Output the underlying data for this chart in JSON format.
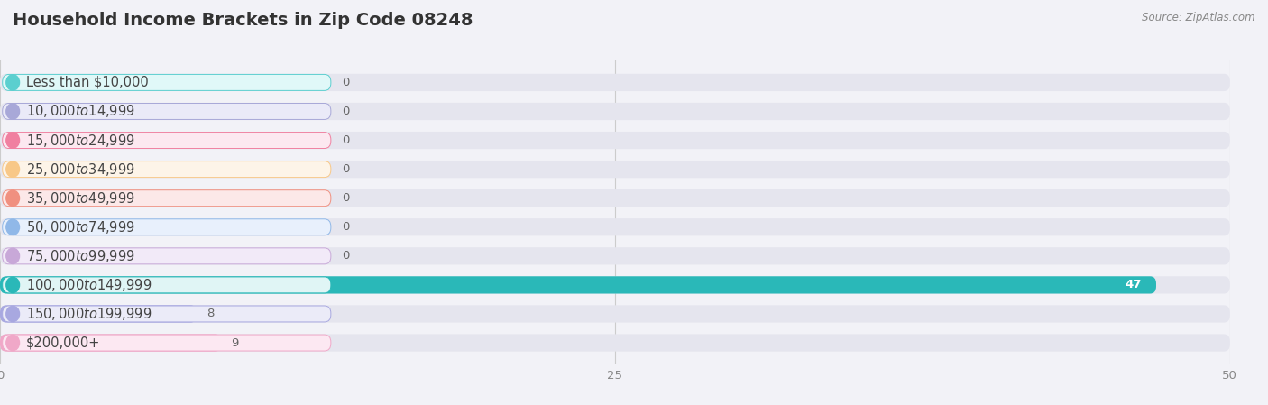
{
  "title": "Household Income Brackets in Zip Code 08248",
  "source": "Source: ZipAtlas.com",
  "categories": [
    "Less than $10,000",
    "$10,000 to $14,999",
    "$15,000 to $24,999",
    "$25,000 to $34,999",
    "$35,000 to $49,999",
    "$50,000 to $74,999",
    "$75,000 to $99,999",
    "$100,000 to $149,999",
    "$150,000 to $199,999",
    "$200,000+"
  ],
  "values": [
    0,
    0,
    0,
    0,
    0,
    0,
    0,
    47,
    8,
    9
  ],
  "bar_colors": [
    "#5bcfcf",
    "#a8a8d8",
    "#f080a0",
    "#f8c888",
    "#f09080",
    "#90b8e8",
    "#c8a8d8",
    "#2ab8b8",
    "#a8a8e0",
    "#f0a8c8"
  ],
  "label_bg_colors": [
    "#e0f8f8",
    "#eaeaf8",
    "#fce8f0",
    "#fdf4e8",
    "#fce8e8",
    "#e8f0fc",
    "#f2eaf8",
    "#e0f5f5",
    "#ebebf8",
    "#fce8f2"
  ],
  "xlim": [
    0,
    50
  ],
  "xticks": [
    0,
    25,
    50
  ],
  "background_color": "#f2f2f7",
  "bar_bg_color": "#e5e5ee",
  "title_fontsize": 14,
  "label_fontsize": 10.5,
  "value_fontsize": 9.5
}
